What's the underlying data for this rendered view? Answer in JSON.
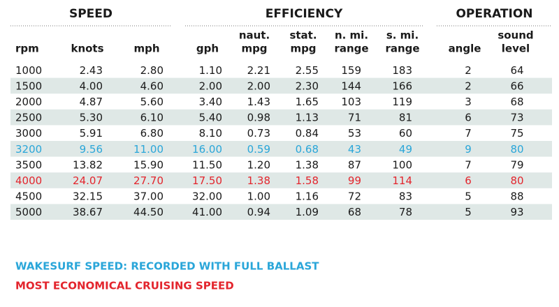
{
  "groups": [
    {
      "title": "SPEED",
      "columns": [
        0,
        1,
        2
      ]
    },
    {
      "title": "EFFICIENCY",
      "columns": [
        3,
        4,
        5,
        6,
        7
      ]
    },
    {
      "title": "OPERATION",
      "columns": [
        8,
        9
      ]
    }
  ],
  "headers": [
    [
      "rpm"
    ],
    [
      "knots"
    ],
    [
      "mph"
    ],
    [
      "gph"
    ],
    [
      "naut.",
      "mpg"
    ],
    [
      "stat.",
      "mpg"
    ],
    [
      "n. mi.",
      "range"
    ],
    [
      "s. mi.",
      "range"
    ],
    [
      "angle"
    ],
    [
      "sound",
      "level"
    ]
  ],
  "rows": [
    [
      "1000",
      "2.43",
      "2.80",
      "1.10",
      "2.21",
      "2.55",
      "159",
      "183",
      "2",
      "64"
    ],
    [
      "1500",
      "4.00",
      "4.60",
      "2.00",
      "2.00",
      "2.30",
      "144",
      "166",
      "2",
      "66"
    ],
    [
      "2000",
      "4.87",
      "5.60",
      "3.40",
      "1.43",
      "1.65",
      "103",
      "119",
      "3",
      "68"
    ],
    [
      "2500",
      "5.30",
      "6.10",
      "5.40",
      "0.98",
      "1.13",
      "71",
      "81",
      "6",
      "73"
    ],
    [
      "3000",
      "5.91",
      "6.80",
      "8.10",
      "0.73",
      "0.84",
      "53",
      "60",
      "7",
      "75"
    ],
    [
      "3200",
      "9.56",
      "11.00",
      "16.00",
      "0.59",
      "0.68",
      "43",
      "49",
      "9",
      "80"
    ],
    [
      "3500",
      "13.82",
      "15.90",
      "11.50",
      "1.20",
      "1.38",
      "87",
      "100",
      "7",
      "79"
    ],
    [
      "4000",
      "24.07",
      "27.70",
      "17.50",
      "1.38",
      "1.58",
      "99",
      "114",
      "6",
      "80"
    ],
    [
      "4500",
      "32.15",
      "37.00",
      "32.00",
      "1.00",
      "1.16",
      "72",
      "83",
      "5",
      "88"
    ],
    [
      "5000",
      "38.67",
      "44.50",
      "41.00",
      "0.94",
      "1.09",
      "68",
      "78",
      "5",
      "93"
    ]
  ],
  "notes": [
    {
      "text": "WAKESURF SPEED: RECORDED WITH FULL BALLAST",
      "color": "#2aa6d9",
      "row": 5
    },
    {
      "text": "MOST ECONOMICAL CRUISING SPEED",
      "color": "#e3252d",
      "row": 7
    }
  ]
}
